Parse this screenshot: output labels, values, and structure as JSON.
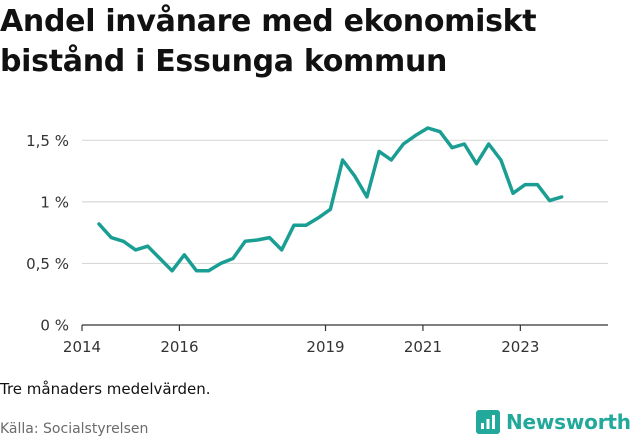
{
  "title": "Andel invånare med ekonomiskt bistånd i Essunga kommun",
  "note": "Tre månaders medelvärden.",
  "source": "Källa: Socialstyrelsen",
  "brand": "Newsworthy",
  "colors": {
    "line": "#1a9e93",
    "grid": "#d9d9d9",
    "brand": "#23a89c"
  },
  "chart_data": {
    "type": "line",
    "title": "Andel invånare med ekonomiskt bistånd i Essunga kommun",
    "xlabel": "",
    "ylabel": "",
    "ylim": [
      0,
      1.6
    ],
    "xlim": [
      2014,
      2024.8
    ],
    "grid": true,
    "y_ticks": [
      {
        "value": 0,
        "label": "0 %"
      },
      {
        "value": 0.5,
        "label": "0,5 %"
      },
      {
        "value": 1,
        "label": "1 %"
      },
      {
        "value": 1.5,
        "label": "1,5 %"
      }
    ],
    "x_ticks": [
      {
        "value": 2014,
        "label": "2014"
      },
      {
        "value": 2016,
        "label": "2016"
      },
      {
        "value": 2019,
        "label": "2019"
      },
      {
        "value": 2021,
        "label": "2021"
      },
      {
        "value": 2023,
        "label": "2023"
      }
    ],
    "series": [
      {
        "x": [
          2014.35,
          2014.6,
          2014.85,
          2015.1,
          2015.35,
          2015.6,
          2015.85,
          2016.1,
          2016.35,
          2016.6,
          2016.85,
          2017.1,
          2017.35,
          2017.6,
          2017.85,
          2018.1,
          2018.35,
          2018.6,
          2018.85,
          2019.1,
          2019.35,
          2019.6,
          2019.85,
          2020.1,
          2020.35,
          2020.6,
          2020.85,
          2021.1,
          2021.35,
          2021.6,
          2021.85,
          2022.1,
          2022.35,
          2022.6,
          2022.85,
          2023.1,
          2023.35,
          2023.6,
          2023.85
        ],
        "values": [
          0.82,
          0.71,
          0.68,
          0.61,
          0.64,
          0.54,
          0.44,
          0.57,
          0.44,
          0.44,
          0.5,
          0.54,
          0.68,
          0.69,
          0.71,
          0.61,
          0.81,
          0.81,
          0.87,
          0.94,
          1.34,
          1.21,
          1.04,
          1.41,
          1.34,
          1.47,
          1.54,
          1.6,
          1.57,
          1.44,
          1.47,
          1.31,
          1.47,
          1.34,
          1.07,
          1.14,
          1.14,
          1.01,
          1.04
        ]
      }
    ]
  }
}
